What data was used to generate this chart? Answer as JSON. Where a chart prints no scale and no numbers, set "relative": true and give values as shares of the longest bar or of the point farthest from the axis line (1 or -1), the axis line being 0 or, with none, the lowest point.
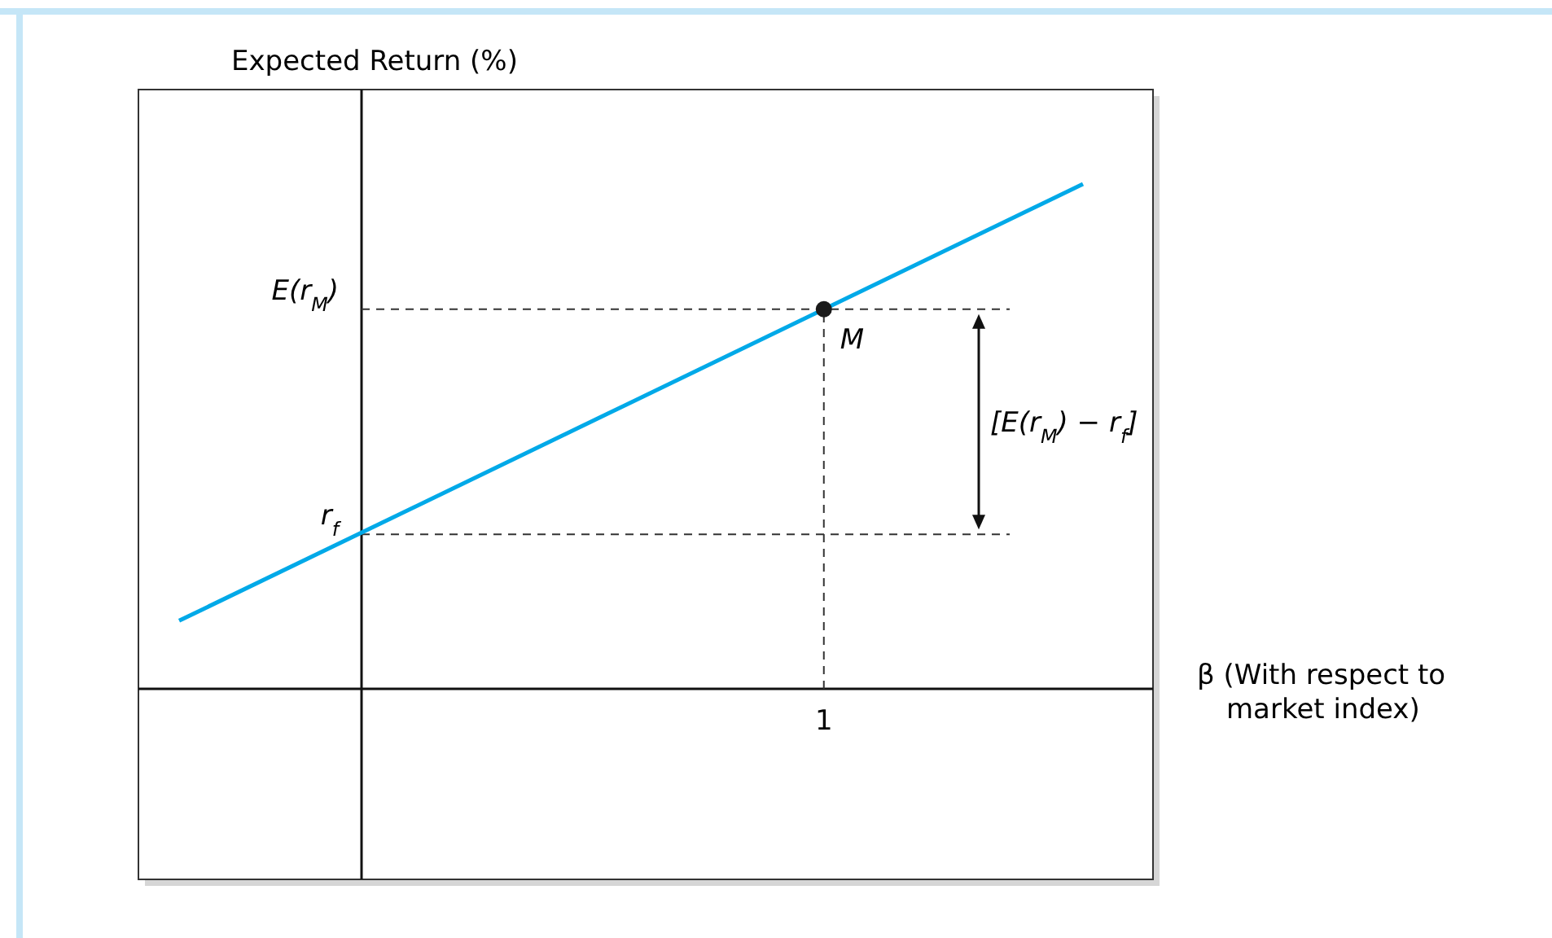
{
  "chart_data": {
    "type": "line",
    "relative": true,
    "ylabel": "Expected Return (%)",
    "xlabel": "β (With respect to market index)",
    "categories": [
      null,
      null
    ],
    "series": [
      {
        "color": "#00a9e8",
        "values": [
          0.135,
          1
        ]
      }
    ],
    "ref_lines": [
      {
        "axis": "y",
        "value": 0.752,
        "label": "E(r$_{M}$)",
        "line_style": "dashed"
      },
      {
        "axis": "y",
        "value": 0.306,
        "label": "r$_{f}$",
        "line_style": "dashed"
      }
    ],
    "annotations": [
      {
        "text": "M",
        "y": 0.752
      },
      "1",
      "[E(r$_{M}$) − r$_{f}$]"
    ],
    "grid": false
  }
}
